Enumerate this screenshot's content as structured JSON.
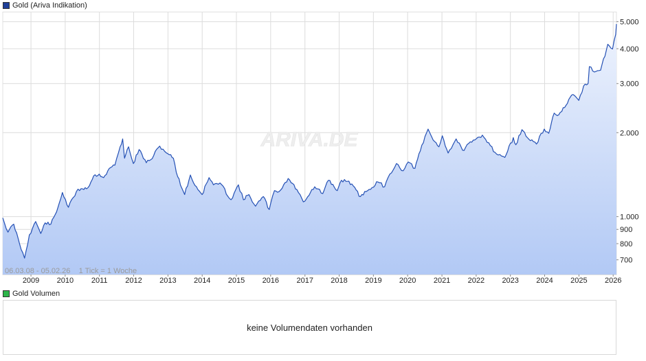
{
  "price_panel": {
    "legend_label": "Gold (Ariva Indikation)",
    "legend_color": "#1f3f99",
    "watermark": "ARIVA.DE",
    "info_text": "06.03.08 - 05.02.26    1 Tick = 1 Woche"
  },
  "volume_panel": {
    "legend_label": "Gold Volumen",
    "legend_color": "#2db44a",
    "message": "keine Volumendaten vorhanden"
  },
  "colors": {
    "line": "#2450b4",
    "fill_top": "#eef3fd",
    "fill_bottom": "#b2c9f5",
    "grid": "#dcdcdc"
  },
  "chart_data": {
    "type": "area",
    "scale": "log",
    "ylim": [
      620,
      5400
    ],
    "xlim": [
      "2008-03-06",
      "2026-02-05"
    ],
    "xticks": [
      "2009",
      "2010",
      "2011",
      "2012",
      "2013",
      "2014",
      "2015",
      "2016",
      "2017",
      "2018",
      "2019",
      "2020",
      "2021",
      "2022",
      "2023",
      "2024",
      "2025",
      "2026"
    ],
    "yticks": [
      {
        "v": 700,
        "l": "700"
      },
      {
        "v": 800,
        "l": "800"
      },
      {
        "v": 900,
        "l": "900"
      },
      {
        "v": 1000,
        "l": "1.000"
      },
      {
        "v": 2000,
        "l": "2.000"
      },
      {
        "v": 3000,
        "l": "3.000"
      },
      {
        "v": 4000,
        "l": "4.000"
      },
      {
        "v": 5000,
        "l": "5.000"
      }
    ],
    "series": [
      {
        "x": [
          "2008-03-06",
          "2008-05-01",
          "2008-07-01",
          "2008-09-01",
          "2008-10-24",
          "2008-12-15",
          "2009-02-20",
          "2009-04-15",
          "2009-06-01",
          "2009-08-01",
          "2009-10-01",
          "2009-12-02",
          "2010-02-05",
          "2010-05-01",
          "2010-06-20",
          "2010-09-01",
          "2010-11-01",
          "2010-12-30",
          "2011-02-15",
          "2011-04-30",
          "2011-06-15",
          "2011-08-10",
          "2011-09-06",
          "2011-09-26",
          "2011-11-08",
          "2011-12-29",
          "2012-02-28",
          "2012-05-15",
          "2012-07-01",
          "2012-10-05",
          "2013-01-01",
          "2013-02-28",
          "2013-04-15",
          "2013-06-28",
          "2013-08-28",
          "2013-10-01",
          "2013-12-31",
          "2014-03-15",
          "2014-05-01",
          "2014-07-10",
          "2014-11-05",
          "2015-01-22",
          "2015-03-17",
          "2015-05-15",
          "2015-07-24",
          "2015-10-15",
          "2015-12-17",
          "2016-02-11",
          "2016-04-01",
          "2016-07-06",
          "2016-10-07",
          "2016-12-15",
          "2017-04-15",
          "2017-07-10",
          "2017-09-08",
          "2017-12-12",
          "2018-01-25",
          "2018-04-15",
          "2018-08-16",
          "2018-10-15",
          "2019-02-20",
          "2019-05-01",
          "2019-06-25",
          "2019-09-04",
          "2019-11-15",
          "2020-01-08",
          "2020-03-19",
          "2020-05-15",
          "2020-08-06",
          "2020-09-30",
          "2020-11-30",
          "2021-01-05",
          "2021-03-08",
          "2021-06-01",
          "2021-08-09",
          "2021-11-15",
          "2022-03-08",
          "2022-05-15",
          "2022-07-21",
          "2022-09-28",
          "2022-11-03",
          "2023-02-01",
          "2023-02-28",
          "2023-05-04",
          "2023-07-01",
          "2023-10-06",
          "2023-12-28",
          "2024-02-14",
          "2024-04-12",
          "2024-06-01",
          "2024-08-01",
          "2024-10-30",
          "2024-12-30",
          "2025-02-20",
          "2025-04-09",
          "2025-04-22",
          "2025-06-15",
          "2025-08-20",
          "2025-10-20",
          "2025-11-05",
          "2025-12-25",
          "2026-01-28",
          "2026-02-05"
        ],
        "y": [
          990,
          880,
          940,
          800,
          710,
          860,
          960,
          870,
          950,
          940,
          1040,
          1220,
          1080,
          1230,
          1260,
          1270,
          1400,
          1420,
          1380,
          1500,
          1530,
          1780,
          1900,
          1620,
          1780,
          1550,
          1740,
          1560,
          1600,
          1790,
          1680,
          1620,
          1390,
          1200,
          1410,
          1320,
          1200,
          1380,
          1300,
          1320,
          1150,
          1300,
          1150,
          1200,
          1090,
          1180,
          1060,
          1240,
          1230,
          1370,
          1250,
          1130,
          1280,
          1210,
          1350,
          1240,
          1350,
          1340,
          1180,
          1230,
          1330,
          1280,
          1420,
          1550,
          1460,
          1570,
          1490,
          1720,
          2060,
          1880,
          1780,
          1950,
          1690,
          1900,
          1730,
          1850,
          1960,
          1840,
          1700,
          1650,
          1630,
          1920,
          1810,
          2050,
          1920,
          1820,
          2060,
          1990,
          2350,
          2320,
          2460,
          2740,
          2610,
          2940,
          3000,
          3450,
          3300,
          3350,
          3950,
          4150,
          3990,
          4500,
          4900
        ]
      }
    ]
  }
}
